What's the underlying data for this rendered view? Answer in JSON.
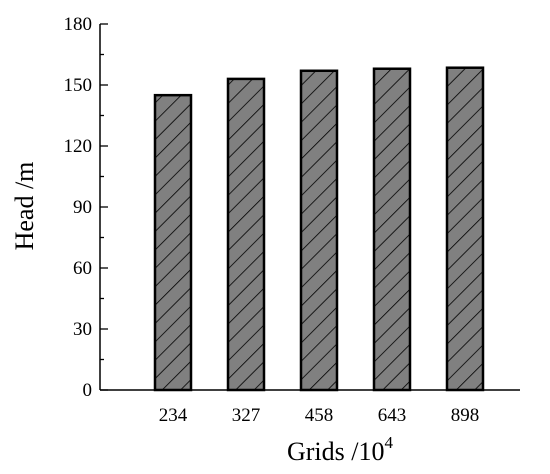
{
  "chart_data": {
    "type": "bar",
    "categories": [
      "234",
      "327",
      "458",
      "643",
      "898"
    ],
    "values": [
      145,
      153,
      157,
      158,
      158.5
    ],
    "xlabel": "Grids /10",
    "xlabel_superscript": "4",
    "ylabel": "Head /m",
    "ylim": [
      0,
      180
    ],
    "yticks": [
      0,
      30,
      60,
      90,
      120,
      150,
      180
    ],
    "grid": false,
    "legend": "none",
    "colors": {
      "bar_fill": "#808080",
      "hatch": "#000000",
      "axis": "#000000"
    }
  }
}
